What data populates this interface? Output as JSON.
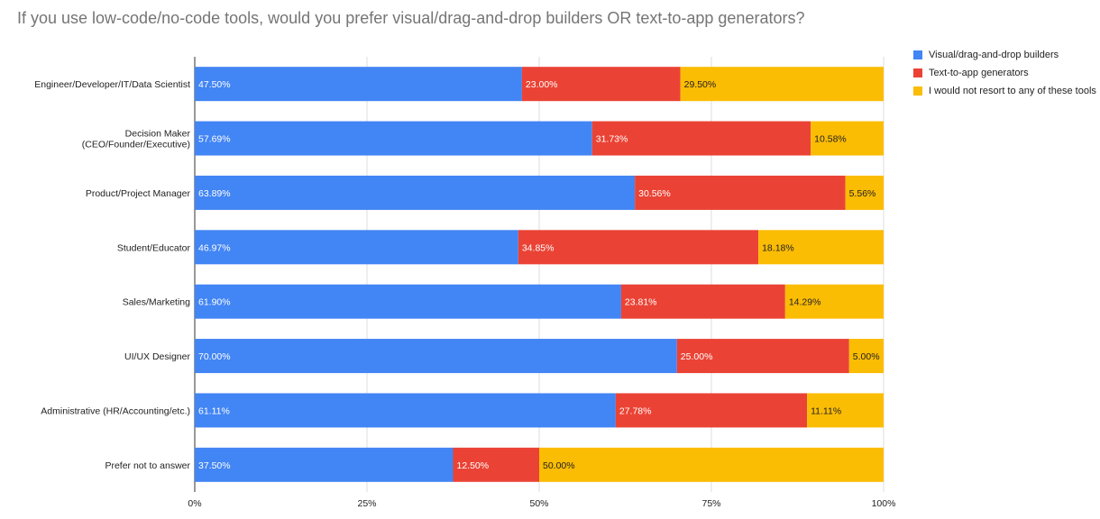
{
  "chart_data": {
    "type": "bar",
    "orientation": "horizontal",
    "stacking": "percent",
    "title": "If you use low-code/no-code tools, would you prefer visual/drag-and-drop builders OR text-to-app generators?",
    "categories": [
      "Engineer/Developer/IT/Data Scientist",
      "Decision Maker (CEO/Founder/Executive)",
      "Product/Project Manager",
      "Student/Educator",
      "Sales/Marketing",
      "UI/UX Designer",
      "Administrative (HR/Accounting/etc.)",
      "Prefer not to answer"
    ],
    "category_label_lines": [
      [
        "Engineer/Developer/IT/Data Scientist"
      ],
      [
        "Decision Maker",
        "(CEO/Founder/Executive)"
      ],
      [
        "Product/Project Manager"
      ],
      [
        "Student/Educator"
      ],
      [
        "Sales/Marketing"
      ],
      [
        "UI/UX Designer"
      ],
      [
        "Administrative (HR/Accounting/etc.)"
      ],
      [
        "Prefer not to answer"
      ]
    ],
    "series": [
      {
        "name": "Visual/drag-and-drop builders",
        "color": "#4285f4",
        "label_color": "#ffffff",
        "values": [
          47.5,
          57.69,
          63.89,
          46.97,
          61.9,
          70.0,
          61.11,
          37.5
        ]
      },
      {
        "name": "Text-to-app generators",
        "color": "#ea4335",
        "label_color": "#ffffff",
        "values": [
          23.0,
          31.73,
          30.56,
          34.85,
          23.81,
          25.0,
          27.78,
          12.5
        ]
      },
      {
        "name": "I would not resort to any of these tools",
        "color": "#fbbc04",
        "label_color": "#222222",
        "values": [
          29.5,
          10.58,
          5.56,
          18.18,
          14.29,
          5.0,
          11.11,
          50.0
        ]
      }
    ],
    "xlim": [
      0,
      100
    ],
    "x_ticks": [
      0,
      25,
      50,
      75,
      100
    ],
    "x_tick_labels": [
      "0%",
      "25%",
      "50%",
      "75%",
      "100%"
    ],
    "grid": true,
    "legend_position": "right"
  }
}
